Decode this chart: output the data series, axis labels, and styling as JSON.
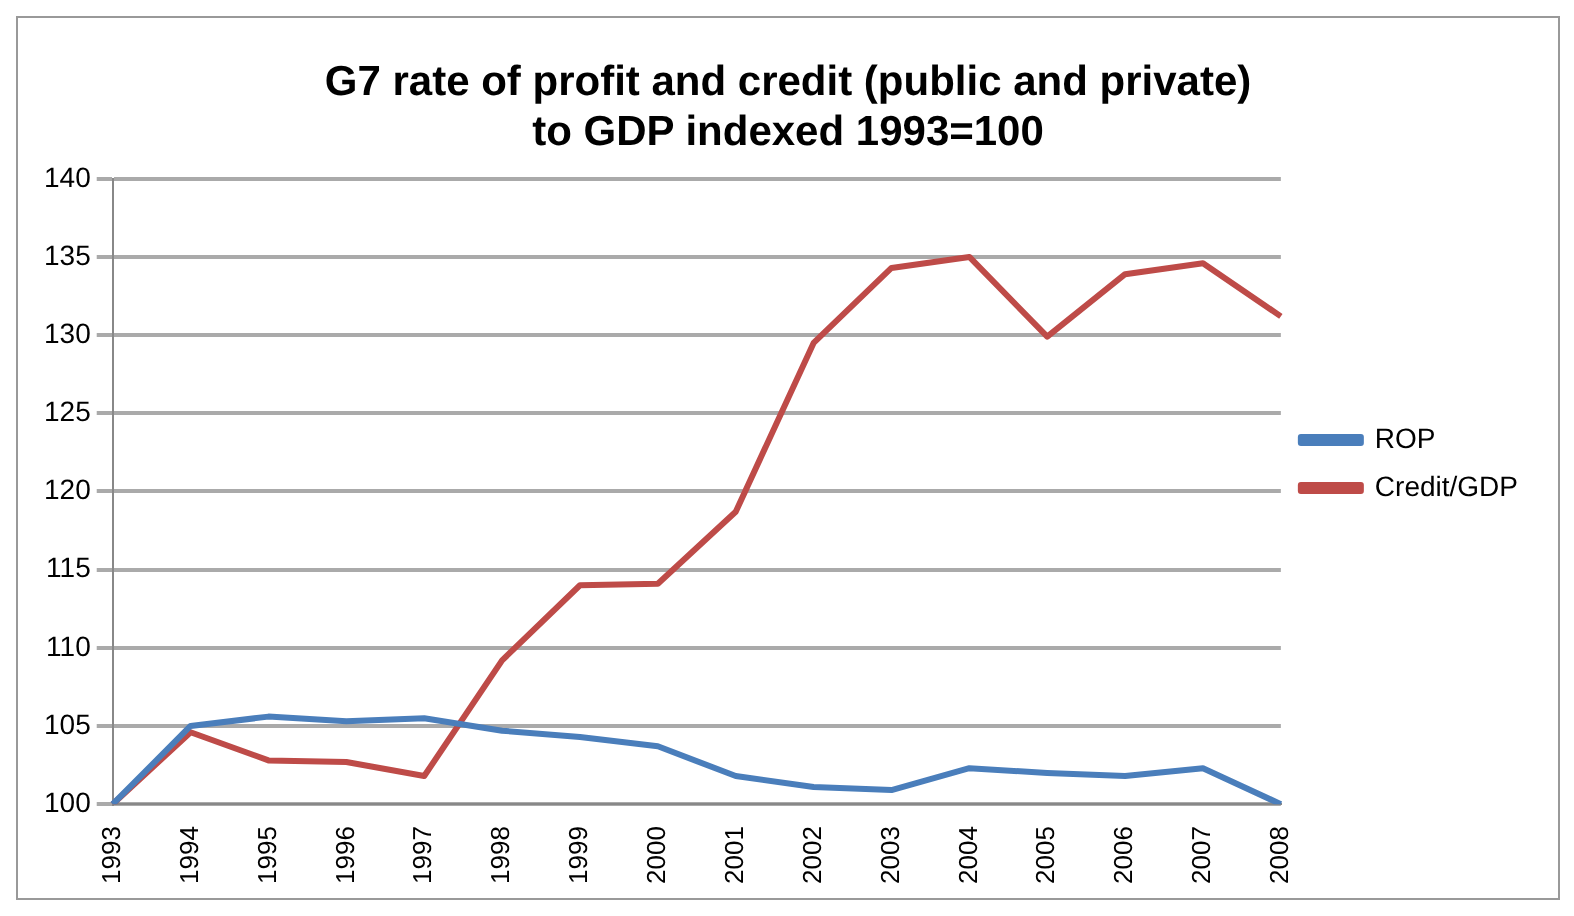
{
  "chart_data": {
    "type": "line",
    "title": "G7 rate of profit and credit (public and private)\nto GDP indexed 1993=100",
    "categories": [
      "1993",
      "1994",
      "1995",
      "1996",
      "1997",
      "1998",
      "1999",
      "2000",
      "2001",
      "2002",
      "2003",
      "2004",
      "2005",
      "2006",
      "2007",
      "2008"
    ],
    "series": [
      {
        "name": "ROP",
        "color": "#4a7ebb",
        "values": [
          100,
          105,
          105.6,
          105.3,
          105.5,
          104.7,
          104.3,
          103.7,
          101.8,
          101.1,
          100.9,
          102.3,
          102,
          101.8,
          102.3,
          100
        ]
      },
      {
        "name": "Credit/GDP",
        "color": "#be4b48",
        "values": [
          100,
          104.6,
          102.8,
          102.7,
          101.8,
          109.2,
          114,
          114.1,
          118.7,
          129.5,
          134.3,
          135,
          129.9,
          133.9,
          134.6,
          131.2
        ]
      }
    ],
    "ylim": [
      100,
      140
    ],
    "yticks": [
      100,
      105,
      110,
      115,
      120,
      125,
      130,
      135,
      140
    ],
    "grid": "y",
    "legend": "right",
    "marker": "none",
    "line_style": "solid"
  }
}
